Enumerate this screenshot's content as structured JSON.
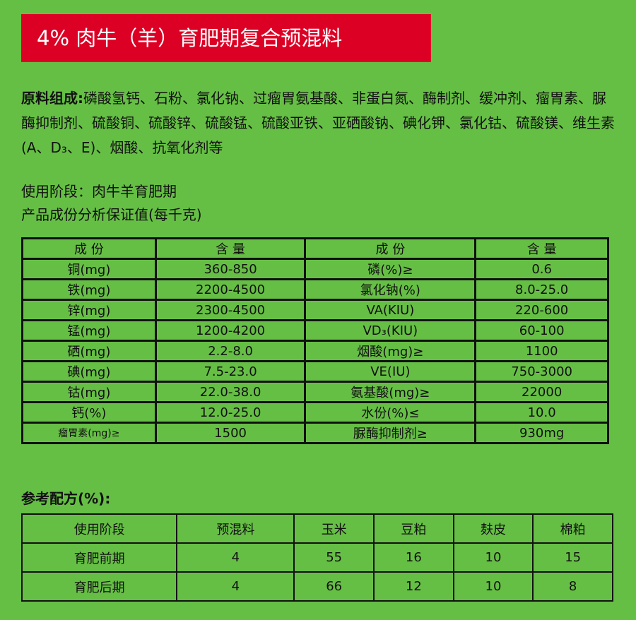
{
  "title": "4% 肉牛（羊）育肥期复合预混料",
  "ingredients": {
    "label": "原料组成:",
    "text": "磷酸氢钙、石粉、氯化钠、过瘤胃氨基酸、非蛋白氮、酶制剂、缓冲剂、瘤胃素、脲  酶抑制剂、硫酸铜、硫酸锌、硫酸锰、硫酸亚铁、亚硒酸钠、碘化钾、氯化钴、硫酸镁、维生素(A、D₃、E)、烟酸、抗氧化剂等"
  },
  "stage": "使用阶段：肉牛羊育肥期",
  "analysis_title": "产品成份分析保证值(每千克)",
  "analysis_table": {
    "headers": [
      "成 份",
      "含 量",
      "成 份",
      "含 量"
    ],
    "rows": [
      [
        "铜(mg)",
        "360-850",
        "磷(%)≥",
        "0.6"
      ],
      [
        "铁(mg)",
        "2200-4500",
        "氯化钠(%)",
        "8.0-25.0"
      ],
      [
        "锌(mg)",
        "2300-4500",
        "VA(KIU)",
        "220-600"
      ],
      [
        "锰(mg)",
        "1200-4200",
        "VD₃(KIU)",
        "60-100"
      ],
      [
        "硒(mg)",
        "2.2-8.0",
        "烟酸(mg)≥",
        "1100"
      ],
      [
        "碘(mg)",
        "7.5-23.0",
        "VE(IU)",
        "750-3000"
      ],
      [
        "钴(mg)",
        "22.0-38.0",
        "氨基酸(mg)≥",
        "22000"
      ],
      [
        "钙(%)",
        "12.0-25.0",
        "水份(%)≤",
        "10.0"
      ],
      [
        "瘤胃素(mg)≥",
        "1500",
        "脲酶抑制剂≥",
        "930mg"
      ]
    ]
  },
  "formula_title": "参考配方(%):",
  "formula_table": {
    "headers": [
      "使用阶段",
      "预混料",
      "玉米",
      "豆粕",
      "麸皮",
      "棉粕"
    ],
    "rows": [
      [
        "育肥前期",
        "4",
        "55",
        "16",
        "10",
        "15"
      ],
      [
        "育肥后期",
        "4",
        "66",
        "12",
        "10",
        "8"
      ]
    ]
  },
  "colors": {
    "background": "#66bf45",
    "banner": "#dd0025"
  }
}
